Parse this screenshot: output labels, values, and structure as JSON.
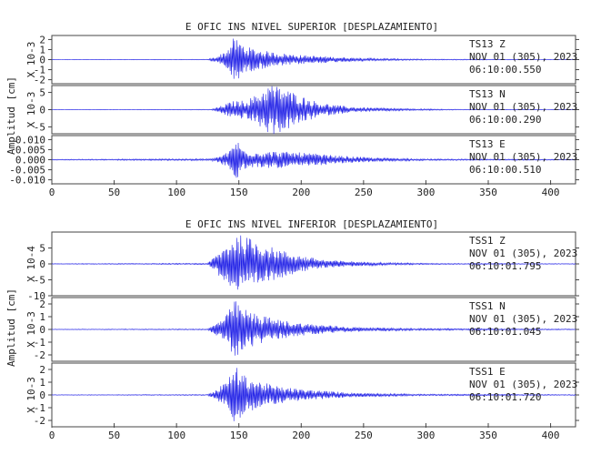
{
  "chart_data": [
    {
      "type": "line",
      "title": "E OFIC INS NIVEL SUPERIOR [DESPLAZAMIENTO]",
      "ylabel": "Amplitud [cm]",
      "xlim": [
        0,
        420
      ],
      "xticks": [
        0,
        50,
        100,
        150,
        200,
        250,
        300,
        350,
        400
      ],
      "traces": [
        {
          "station": "TS13",
          "component": "Z",
          "date": "NOV 01 (305), 2023",
          "time": "06:10:00.550",
          "scale_label": "X 10-3",
          "ylim": [
            -2.4,
            2.4
          ],
          "yticks": [
            2,
            1,
            0,
            -1,
            -2
          ],
          "envelope": [
            [
              0,
              0.02
            ],
            [
              125,
              0.03
            ],
            [
              132,
              0.3
            ],
            [
              140,
              0.9
            ],
            [
              146,
              2.2
            ],
            [
              150,
              1.9
            ],
            [
              156,
              1.3
            ],
            [
              165,
              1.0
            ],
            [
              180,
              0.7
            ],
            [
              200,
              0.45
            ],
            [
              230,
              0.25
            ],
            [
              260,
              0.12
            ],
            [
              300,
              0.05
            ],
            [
              420,
              0.02
            ]
          ]
        },
        {
          "station": "TS13",
          "component": "N",
          "date": "NOV 01 (305), 2023",
          "time": "06:10:00.290",
          "scale_label": "X 10-3",
          "ylim": [
            -7,
            7
          ],
          "yticks": [
            5,
            0,
            -5
          ],
          "envelope": [
            [
              0,
              0.05
            ],
            [
              128,
              0.1
            ],
            [
              135,
              1.0
            ],
            [
              145,
              2.5
            ],
            [
              155,
              2.7
            ],
            [
              165,
              4.5
            ],
            [
              175,
              7.5
            ],
            [
              185,
              6.5
            ],
            [
              200,
              4.0
            ],
            [
              215,
              2.0
            ],
            [
              240,
              0.8
            ],
            [
              280,
              0.3
            ],
            [
              330,
              0.1
            ],
            [
              420,
              0.05
            ]
          ]
        },
        {
          "station": "TS13",
          "component": "E",
          "date": "NOV 01 (305), 2023",
          "time": "06:10:00.510",
          "scale_label": "",
          "ylim": [
            -0.012,
            0.012
          ],
          "yticks": [
            0.01,
            0.005,
            0.0,
            -0.005,
            -0.01
          ],
          "ytick_labels": [
            "0.010",
            "0.005",
            "0.000",
            "-0.005",
            "-0.010"
          ],
          "envelope": [
            [
              0,
              0.0002
            ],
            [
              128,
              0.0005
            ],
            [
              135,
              0.002
            ],
            [
              142,
              0.004
            ],
            [
              148,
              0.011
            ],
            [
              152,
              0.006
            ],
            [
              160,
              0.004
            ],
            [
              180,
              0.0042
            ],
            [
              200,
              0.0036
            ],
            [
              230,
              0.002
            ],
            [
              260,
              0.001
            ],
            [
              300,
              0.0004
            ],
            [
              420,
              0.0002
            ]
          ]
        }
      ]
    },
    {
      "type": "line",
      "title": "E OFIC INS NIVEL INFERIOR [DESPLAZAMIENTO]",
      "ylabel": "Amplitud [cm]",
      "xlim": [
        0,
        420
      ],
      "xticks": [
        0,
        50,
        100,
        150,
        200,
        250,
        300,
        350,
        400
      ],
      "traces": [
        {
          "station": "TSS1",
          "component": "Z",
          "date": "NOV 01 (305), 2023",
          "time": "06:10:01.795",
          "scale_label": "X 10-4",
          "ylim": [
            -10,
            10
          ],
          "yticks": [
            5,
            0,
            -5,
            -10
          ],
          "envelope": [
            [
              0,
              0.1
            ],
            [
              125,
              0.2
            ],
            [
              132,
              3.0
            ],
            [
              140,
              6.0
            ],
            [
              148,
              9.5
            ],
            [
              160,
              8.0
            ],
            [
              175,
              5.5
            ],
            [
              195,
              3.0
            ],
            [
              220,
              1.2
            ],
            [
              260,
              0.5
            ],
            [
              300,
              0.2
            ],
            [
              420,
              0.1
            ]
          ]
        },
        {
          "station": "TSS1",
          "component": "N",
          "date": "NOV 01 (305), 2023",
          "time": "06:10:01.045",
          "scale_label": "X 10-3",
          "ylim": [
            -2.5,
            2.5
          ],
          "yticks": [
            2,
            1,
            0,
            -1,
            -2
          ],
          "envelope": [
            [
              0,
              0.02
            ],
            [
              125,
              0.04
            ],
            [
              132,
              0.5
            ],
            [
              140,
              1.2
            ],
            [
              147,
              2.3
            ],
            [
              155,
              1.6
            ],
            [
              165,
              1.2
            ],
            [
              180,
              0.8
            ],
            [
              200,
              0.5
            ],
            [
              240,
              0.2
            ],
            [
              290,
              0.08
            ],
            [
              420,
              0.03
            ]
          ]
        },
        {
          "station": "TSS1",
          "component": "E",
          "date": "NOV 01 (305), 2023",
          "time": "06:10:01.720",
          "scale_label": "X 10-3",
          "ylim": [
            -2.5,
            2.5
          ],
          "yticks": [
            2,
            1,
            0,
            -1,
            -2
          ],
          "envelope": [
            [
              0,
              0.02
            ],
            [
              125,
              0.04
            ],
            [
              133,
              0.5
            ],
            [
              140,
              1.1
            ],
            [
              147,
              2.3
            ],
            [
              155,
              1.5
            ],
            [
              165,
              1.1
            ],
            [
              180,
              0.7
            ],
            [
              200,
              0.45
            ],
            [
              240,
              0.18
            ],
            [
              290,
              0.07
            ],
            [
              420,
              0.03
            ]
          ]
        }
      ]
    }
  ],
  "colors": {
    "trace": "#1f1fe6",
    "axis": "#444444",
    "text": "#222222"
  }
}
